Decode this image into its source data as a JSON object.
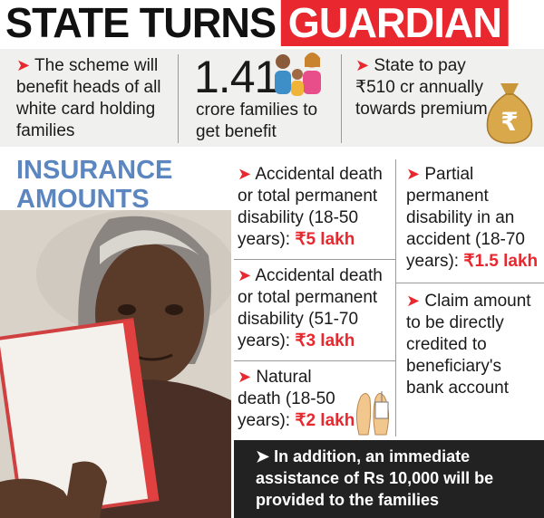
{
  "title": {
    "black": "STATE TURNS",
    "red": "GUARDIAN"
  },
  "summary": {
    "scheme": "The scheme will benefit heads of all white card holding families",
    "families_number": "1.41",
    "families_label": "crore families to get benefit",
    "premium": "State to pay ₹510 cr annually towards premium",
    "money_bag_symbol": "₹"
  },
  "insurance": {
    "heading_line1": "INSURANCE",
    "heading_line2": "AMOUNTS",
    "items": [
      {
        "text": "Accidental death or total permanent disability (18-50 years): ",
        "amount": "₹5 lakh"
      },
      {
        "text": "Accidental death or total permanent disability (51-70 years): ",
        "amount": "₹3 lakh"
      },
      {
        "text": "Natural death (18-50 years): ",
        "amount": "₹2 lakh"
      },
      {
        "text": "Partial permanent disability in an accident (18-70 years): ",
        "amount": "₹1.5 lakh"
      },
      {
        "text": "Claim amount to be directly credited to beneficiary's bank account",
        "amount": ""
      }
    ]
  },
  "note": "In addition, an immediate assistance of Rs 10,000 will be provided to the families",
  "colors": {
    "accent": "#e8282e",
    "heading_blue": "#5b86c0",
    "band": "#f0f0ef",
    "note_bg": "#222222"
  },
  "icons": [
    "arrow-icon",
    "family-icon",
    "money-bag-icon",
    "feet-tag-icon"
  ]
}
